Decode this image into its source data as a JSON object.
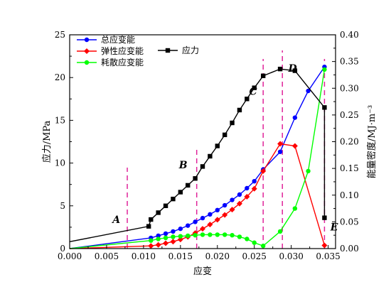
{
  "chart_data": {
    "type": "line",
    "xlabel": "应变",
    "ylabel_left": "应力/MPa",
    "ylabel_right": "能量密度/MJ·m⁻³",
    "xlim": [
      0,
      0.036
    ],
    "ylim_left": [
      0,
      25
    ],
    "ylim_right": [
      0,
      0.4
    ],
    "x_ticks": [
      "0.000",
      "0.005",
      "0.010",
      "0.015",
      "0.020",
      "0.025",
      "0.030",
      "0.035"
    ],
    "y_left_ticks": [
      "0",
      "5",
      "10",
      "15",
      "20",
      "25"
    ],
    "y_right_ticks": [
      "0.00",
      "0.05",
      "0.10",
      "0.15",
      "0.20",
      "0.25",
      "0.30",
      "0.35",
      "0.40"
    ],
    "grid": false,
    "legend": {
      "position": "top-left"
    },
    "phase_boundaries": [
      0.0078,
      0.0172,
      0.0262,
      0.0288,
      0.0345
    ],
    "annotations": [
      {
        "text": "A",
        "x": 0.0058,
        "y_left": 3.0
      },
      {
        "text": "B",
        "x": 0.0148,
        "y_left": 9.4
      },
      {
        "text": "C",
        "x": 0.0243,
        "y_left": 18.0
      },
      {
        "text": "D",
        "x": 0.0296,
        "y_left": 20.7
      },
      {
        "text": "E",
        "x": 0.0353,
        "y_left": 2.1
      }
    ],
    "series": [
      {
        "name": "总应变能",
        "axis": "right",
        "color": "#0000ff",
        "marker": "circle",
        "points": [
          [
            0.0,
            0.0
          ],
          [
            0.011,
            0.02
          ],
          [
            0.012,
            0.024
          ],
          [
            0.013,
            0.028
          ],
          [
            0.014,
            0.032
          ],
          [
            0.015,
            0.037
          ],
          [
            0.016,
            0.043
          ],
          [
            0.017,
            0.05
          ],
          [
            0.018,
            0.057
          ],
          [
            0.019,
            0.064
          ],
          [
            0.02,
            0.072
          ],
          [
            0.021,
            0.081
          ],
          [
            0.022,
            0.091
          ],
          [
            0.023,
            0.101
          ],
          [
            0.024,
            0.113
          ],
          [
            0.025,
            0.126
          ],
          [
            0.0262,
            0.148
          ],
          [
            0.0285,
            0.181
          ],
          [
            0.0305,
            0.245
          ],
          [
            0.0323,
            0.295
          ],
          [
            0.0345,
            0.34
          ]
        ]
      },
      {
        "name": "弹性应变能",
        "axis": "right",
        "color": "#ff0000",
        "marker": "diamond",
        "points": [
          [
            0.0,
            0.0
          ],
          [
            0.011,
            0.005
          ],
          [
            0.012,
            0.007
          ],
          [
            0.013,
            0.01
          ],
          [
            0.014,
            0.013
          ],
          [
            0.015,
            0.017
          ],
          [
            0.016,
            0.022
          ],
          [
            0.017,
            0.029
          ],
          [
            0.018,
            0.037
          ],
          [
            0.019,
            0.045
          ],
          [
            0.02,
            0.054
          ],
          [
            0.021,
            0.063
          ],
          [
            0.022,
            0.073
          ],
          [
            0.023,
            0.084
          ],
          [
            0.024,
            0.097
          ],
          [
            0.025,
            0.112
          ],
          [
            0.0262,
            0.145
          ],
          [
            0.0285,
            0.196
          ],
          [
            0.0305,
            0.192
          ],
          [
            0.0345,
            0.006
          ]
        ]
      },
      {
        "name": "耗散应变能",
        "axis": "right",
        "color": "#00ff00",
        "marker": "circle",
        "points": [
          [
            0.0,
            0.0
          ],
          [
            0.011,
            0.015
          ],
          [
            0.012,
            0.018
          ],
          [
            0.013,
            0.02
          ],
          [
            0.014,
            0.022
          ],
          [
            0.015,
            0.023
          ],
          [
            0.016,
            0.024
          ],
          [
            0.017,
            0.025
          ],
          [
            0.018,
            0.026
          ],
          [
            0.019,
            0.026
          ],
          [
            0.02,
            0.026
          ],
          [
            0.021,
            0.026
          ],
          [
            0.022,
            0.025
          ],
          [
            0.023,
            0.022
          ],
          [
            0.024,
            0.018
          ],
          [
            0.025,
            0.011
          ],
          [
            0.0262,
            0.005
          ],
          [
            0.0285,
            0.032
          ],
          [
            0.0305,
            0.075
          ],
          [
            0.0323,
            0.145
          ],
          [
            0.0345,
            0.335
          ]
        ]
      },
      {
        "name": "应力",
        "axis": "left",
        "color": "#000000",
        "marker": "square",
        "points": [
          [
            0.0,
            0.8
          ],
          [
            0.0107,
            2.6
          ],
          [
            0.011,
            3.4
          ],
          [
            0.012,
            4.2
          ],
          [
            0.013,
            5.0
          ],
          [
            0.014,
            5.8
          ],
          [
            0.015,
            6.6
          ],
          [
            0.016,
            7.4
          ],
          [
            0.017,
            8.2
          ],
          [
            0.018,
            9.6
          ],
          [
            0.019,
            10.8
          ],
          [
            0.02,
            12.0
          ],
          [
            0.021,
            13.3
          ],
          [
            0.022,
            14.7
          ],
          [
            0.023,
            16.2
          ],
          [
            0.024,
            17.5
          ],
          [
            0.025,
            18.8
          ],
          [
            0.0262,
            20.2
          ],
          [
            0.0285,
            21.0
          ],
          [
            0.0305,
            20.8
          ],
          [
            0.0345,
            16.5
          ],
          [
            0.0345,
            3.6
          ]
        ]
      }
    ]
  }
}
